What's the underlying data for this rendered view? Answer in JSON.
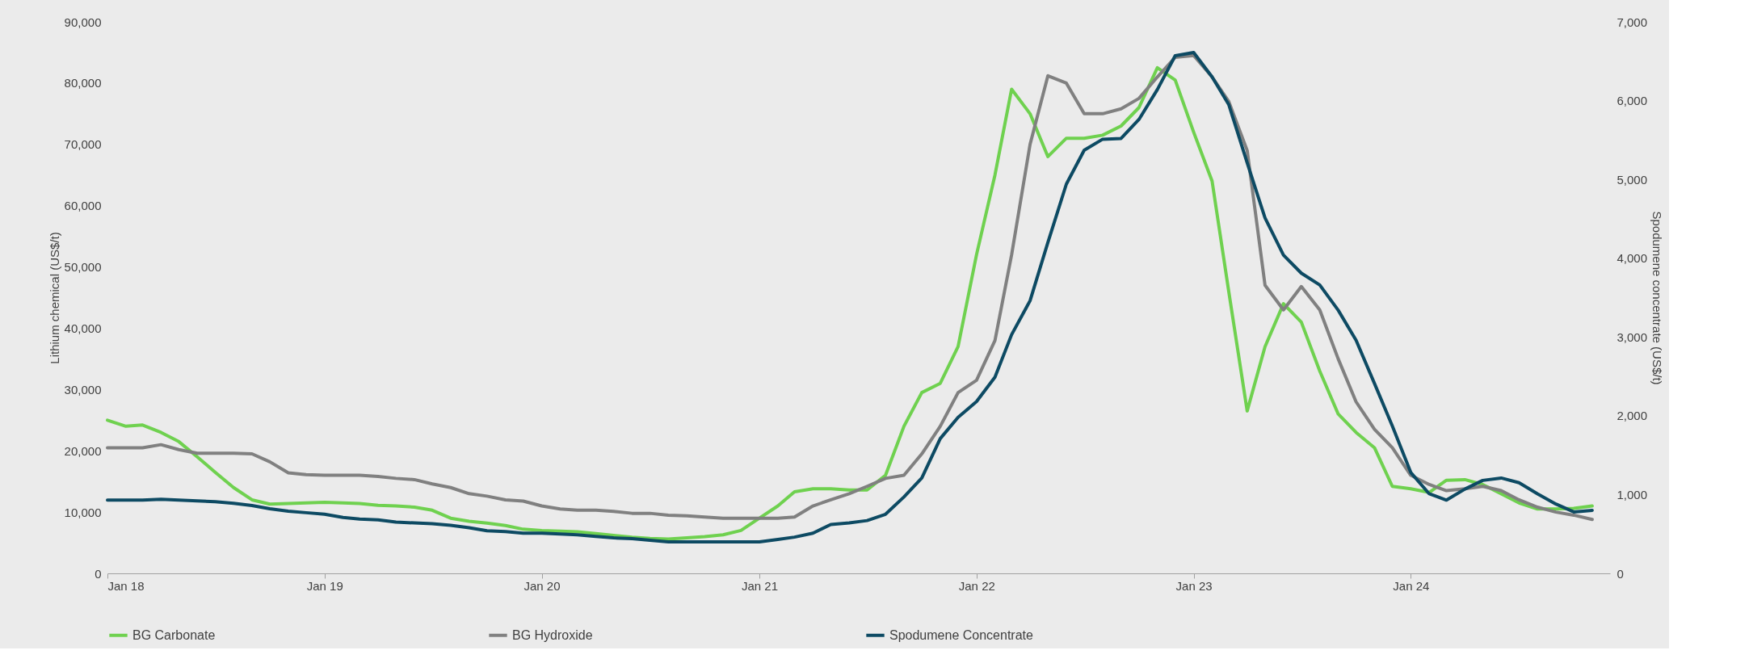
{
  "chart_data": {
    "type": "line",
    "ylabel": "Lithium chemical (US$/t)",
    "y2label": "Spodumene concentrate (US$/t)",
    "x": [
      "2018-01",
      "2018-02",
      "2018-03",
      "2018-04",
      "2018-05",
      "2018-06",
      "2018-07",
      "2018-08",
      "2018-09",
      "2018-10",
      "2018-11",
      "2018-12",
      "2019-01",
      "2019-02",
      "2019-03",
      "2019-04",
      "2019-05",
      "2019-06",
      "2019-07",
      "2019-08",
      "2019-09",
      "2019-10",
      "2019-11",
      "2019-12",
      "2020-01",
      "2020-02",
      "2020-03",
      "2020-04",
      "2020-05",
      "2020-06",
      "2020-07",
      "2020-08",
      "2020-09",
      "2020-10",
      "2020-11",
      "2020-12",
      "2021-01",
      "2021-02",
      "2021-03",
      "2021-04",
      "2021-05",
      "2021-06",
      "2021-07",
      "2021-08",
      "2021-09",
      "2021-10",
      "2021-11",
      "2021-12",
      "2022-01",
      "2022-02",
      "2022-03",
      "2022-04",
      "2022-05",
      "2022-06",
      "2022-07",
      "2022-08",
      "2022-09",
      "2022-10",
      "2022-11",
      "2022-12",
      "2023-01",
      "2023-02",
      "2023-03",
      "2023-04",
      "2023-05",
      "2023-06",
      "2023-07",
      "2023-08",
      "2023-09",
      "2023-10",
      "2023-11",
      "2023-12",
      "2024-01",
      "2024-02",
      "2024-03",
      "2024-04",
      "2024-05",
      "2024-06",
      "2024-07",
      "2024-08",
      "2024-09",
      "2024-10",
      "2024-11"
    ],
    "series": [
      {
        "name": "BG Carbonate",
        "color": "#6fd14f",
        "values": [
          25000,
          24000,
          24200,
          23000,
          21500,
          19000,
          16500,
          14000,
          12000,
          11300,
          11400,
          11500,
          11600,
          11500,
          11400,
          11100,
          11000,
          10800,
          10300,
          9000,
          8500,
          8200,
          7800,
          7200,
          7000,
          6900,
          6800,
          6500,
          6200,
          5900,
          5700,
          5600,
          5800,
          6000,
          6300,
          7000,
          9000,
          11000,
          13300,
          13800,
          13800,
          13600,
          13600,
          16000,
          24000,
          29500,
          31000,
          37000,
          52000,
          65000,
          79000,
          75000,
          68000,
          71000,
          71000,
          71500,
          73000,
          76000,
          82500,
          80500,
          72000,
          64000,
          46000,
          26500,
          37000,
          44000,
          41000,
          33000,
          26000,
          23000,
          20500,
          14200,
          13800,
          13200,
          15200,
          15300,
          14500,
          13000,
          11500,
          10500,
          10500,
          10600,
          11000
        ]
      },
      {
        "name": "BG Hydroxide",
        "color": "#808080",
        "values": [
          20500,
          20500,
          20500,
          21000,
          20200,
          19600,
          19600,
          19600,
          19500,
          18200,
          16400,
          16100,
          16000,
          16000,
          16000,
          15800,
          15500,
          15300,
          14600,
          14000,
          13000,
          12600,
          12000,
          11800,
          11000,
          10500,
          10300,
          10300,
          10100,
          9800,
          9800,
          9500,
          9400,
          9200,
          9000,
          9000,
          9000,
          9000,
          9200,
          11000,
          12000,
          13000,
          14200,
          15500,
          16000,
          19500,
          24000,
          29500,
          31500,
          38000,
          52000,
          70000,
          81200,
          80000,
          75000,
          75000,
          75800,
          77500,
          81000,
          84200,
          84500,
          81000,
          77000,
          69000,
          47000,
          43000,
          46800,
          43000,
          35000,
          28000,
          23500,
          20500,
          16000,
          14500,
          13500,
          13800,
          14200,
          13500,
          12000,
          10800,
          10000,
          9500,
          8800
        ]
      },
      {
        "name": "Spodumene Concentrate",
        "color": "#0d4a63",
        "axis": "y2",
        "values": [
          930,
          930,
          930,
          940,
          930,
          920,
          910,
          890,
          860,
          820,
          790,
          770,
          750,
          710,
          690,
          680,
          650,
          640,
          630,
          610,
          580,
          540,
          530,
          510,
          510,
          500,
          490,
          470,
          450,
          440,
          420,
          400,
          400,
          400,
          400,
          400,
          400,
          430,
          460,
          510,
          620,
          640,
          670,
          750,
          970,
          1210,
          1710,
          1980,
          2180,
          2490,
          3030,
          3460,
          4200,
          4940,
          5370,
          5510,
          5520,
          5760,
          6140,
          6570,
          6610,
          6300,
          5950,
          5210,
          4510,
          4040,
          3810,
          3660,
          3340,
          2960,
          2410,
          1870,
          1280,
          1010,
          930,
          1070,
          1180,
          1210,
          1150,
          1010,
          880,
          780,
          800
        ]
      }
    ],
    "xlim": [
      "2018-01",
      "2024-12"
    ],
    "xticks": [
      {
        "value": "2018-01",
        "label": "Jan 18"
      },
      {
        "value": "2019-01",
        "label": "Jan 19"
      },
      {
        "value": "2020-01",
        "label": "Jan 20"
      },
      {
        "value": "2021-01",
        "label": "Jan 21"
      },
      {
        "value": "2022-01",
        "label": "Jan 22"
      },
      {
        "value": "2023-01",
        "label": "Jan 23"
      },
      {
        "value": "2024-01",
        "label": "Jan 24"
      }
    ],
    "ylim": [
      0,
      90000
    ],
    "yticks": [
      {
        "value": 0,
        "label": "0"
      },
      {
        "value": 10000,
        "label": "10,000"
      },
      {
        "value": 20000,
        "label": "20,000"
      },
      {
        "value": 30000,
        "label": "30,000"
      },
      {
        "value": 40000,
        "label": "40,000"
      },
      {
        "value": 50000,
        "label": "50,000"
      },
      {
        "value": 60000,
        "label": "60,000"
      },
      {
        "value": 70000,
        "label": "70,000"
      },
      {
        "value": 80000,
        "label": "80,000"
      },
      {
        "value": 90000,
        "label": "90,000"
      }
    ],
    "y2lim": [
      0,
      7000
    ],
    "y2ticks": [
      {
        "value": 0,
        "label": "0"
      },
      {
        "value": 1000,
        "label": "1,000"
      },
      {
        "value": 2000,
        "label": "2,000"
      },
      {
        "value": 3000,
        "label": "3,000"
      },
      {
        "value": 4000,
        "label": "4,000"
      },
      {
        "value": 5000,
        "label": "5,000"
      },
      {
        "value": 6000,
        "label": "6,000"
      },
      {
        "value": 7000,
        "label": "7,000"
      }
    ],
    "grid": false,
    "legend": "bottom",
    "marker": "none",
    "line_style": "solid"
  }
}
